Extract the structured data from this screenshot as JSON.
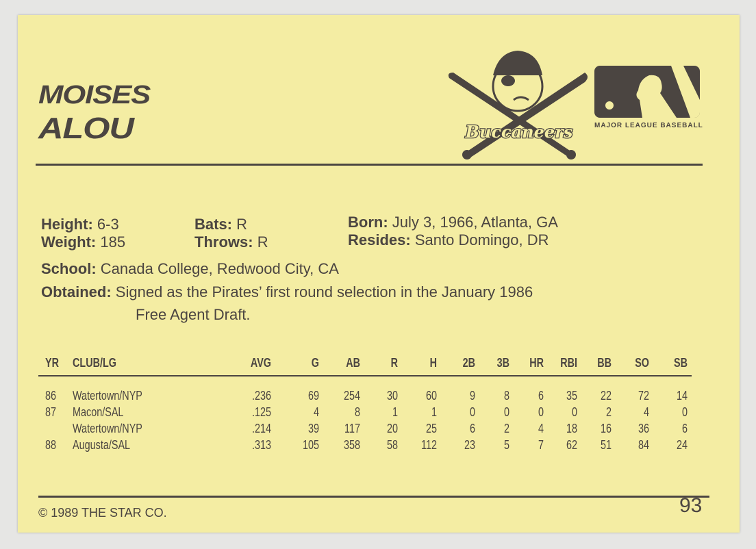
{
  "player": {
    "first_name": "MOISES",
    "last_name": "ALOU"
  },
  "logos": {
    "team": "Buccaneers",
    "league": "MAJOR LEAGUE BASEBALL"
  },
  "bio": {
    "height_label": "Height:",
    "height": "6-3",
    "weight_label": "Weight:",
    "weight": "185",
    "bats_label": "Bats:",
    "bats": "R",
    "throws_label": "Throws:",
    "throws": "R",
    "born_label": "Born:",
    "born": "July 3, 1966, Atlanta, GA",
    "resides_label": "Resides:",
    "resides": "Santo Domingo, DR",
    "school_label": "School:",
    "school": "Canada College, Redwood City, CA",
    "obtained_label": "Obtained:",
    "obtained_line1": "Signed as the Pirates’ first round selection in the January 1986",
    "obtained_line2": "Free Agent Draft."
  },
  "stats": {
    "headers": [
      "YR",
      "CLUB/LG",
      "AVG",
      "G",
      "AB",
      "R",
      "H",
      "2B",
      "3B",
      "HR",
      "RBI",
      "BB",
      "SO",
      "SB"
    ],
    "rows": [
      [
        "86",
        "Watertown/NYP",
        ".236",
        "69",
        "254",
        "30",
        "60",
        "9",
        "8",
        "6",
        "35",
        "22",
        "72",
        "14"
      ],
      [
        "87",
        "Macon/SAL",
        ".125",
        "4",
        "8",
        "1",
        "1",
        "0",
        "0",
        "0",
        "0",
        "2",
        "4",
        "0"
      ],
      [
        "",
        "Watertown/NYP",
        ".214",
        "39",
        "117",
        "20",
        "25",
        "6",
        "2",
        "4",
        "18",
        "16",
        "36",
        "6"
      ],
      [
        "88",
        "Augusta/SAL",
        ".313",
        "105",
        "358",
        "58",
        "112",
        "23",
        "5",
        "7",
        "62",
        "51",
        "84",
        "24"
      ]
    ]
  },
  "footer": {
    "copyright": "© 1989 THE STAR CO.",
    "card_number": "93"
  },
  "colors": {
    "card": "#f4eda3",
    "ink": "#4b4541"
  }
}
